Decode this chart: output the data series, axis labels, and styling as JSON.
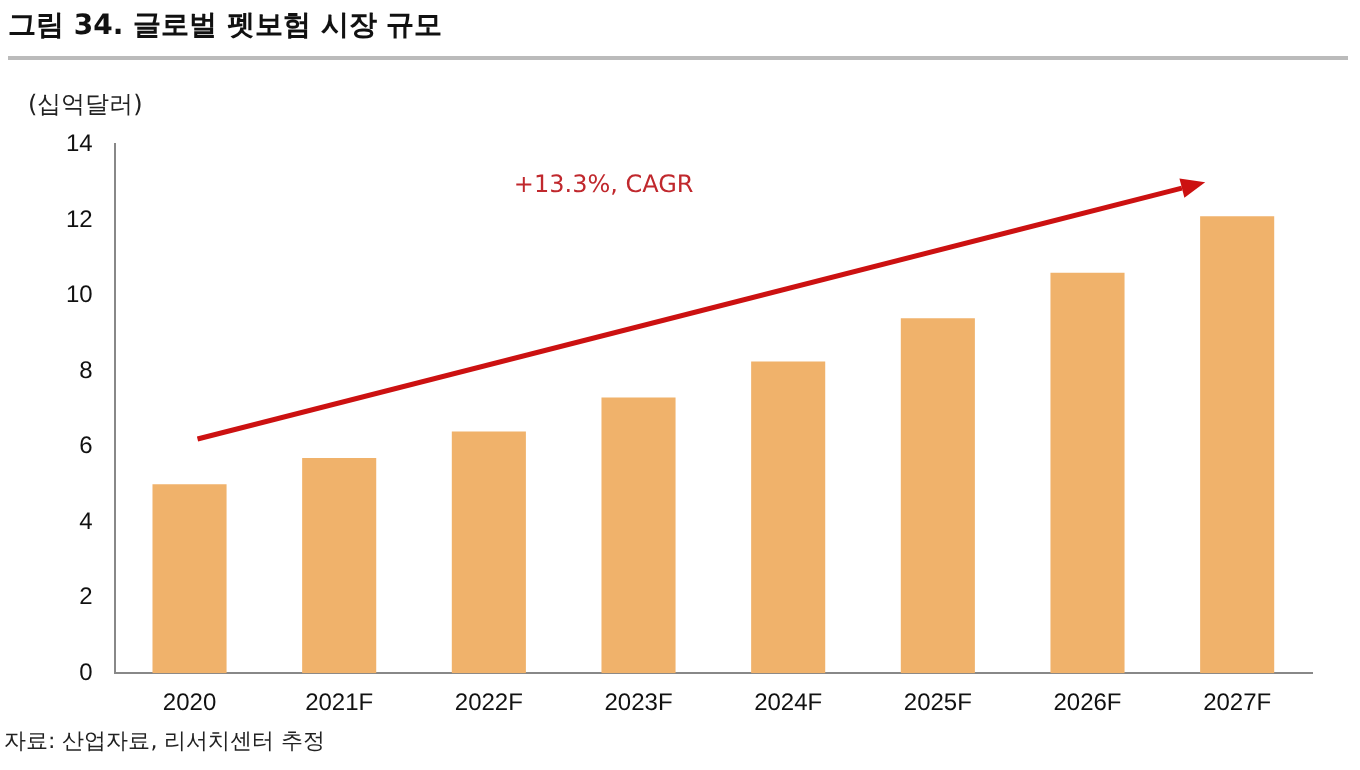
{
  "chart_data": {
    "type": "bar",
    "title": "그림 34. 글로벌 펫보험 시장 규모",
    "ylabel": "(십억달러)",
    "categories": [
      "2020",
      "2021F",
      "2022F",
      "2023F",
      "2024F",
      "2025F",
      "2026F",
      "2027F"
    ],
    "values": [
      5.0,
      5.7,
      6.4,
      7.3,
      8.25,
      9.4,
      10.6,
      12.1
    ],
    "color": "#f0b26b",
    "ylim": [
      0,
      14
    ],
    "yticks": [
      0,
      2,
      4,
      6,
      8,
      10,
      12,
      14
    ],
    "grid": false,
    "legend": false,
    "annotations": [
      "+13.3%, CAGR",
      "자료: 산업자료, 리서치센터 추정"
    ]
  }
}
